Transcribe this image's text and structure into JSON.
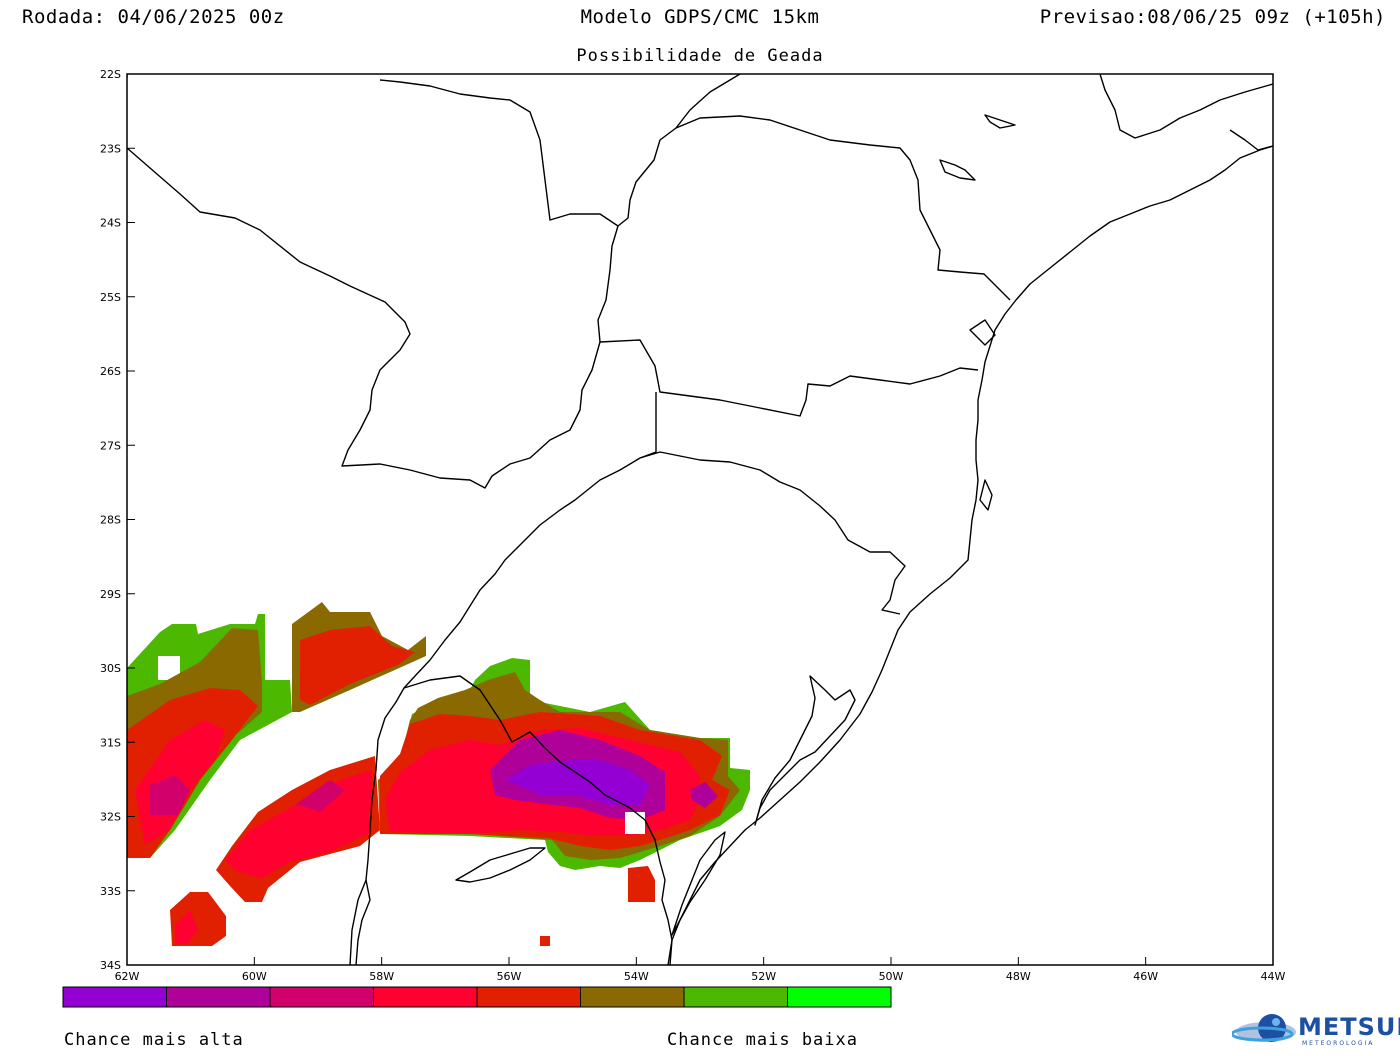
{
  "header": {
    "run": "Rodada: 04/06/2025 00z",
    "model": "Modelo GDPS/CMC 15km",
    "valid": "Previsao:08/06/25 09z (+105h)"
  },
  "subtitle": "Possibilidade de Geada",
  "map": {
    "lon_range": [
      -62,
      -44
    ],
    "lat_range": [
      -34,
      -22
    ],
    "lon_ticks": [
      "62W",
      "60W",
      "58W",
      "56W",
      "54W",
      "52W",
      "50W",
      "48W",
      "46W",
      "44W"
    ],
    "lat_ticks": [
      "22S",
      "23S",
      "24S",
      "25S",
      "26S",
      "27S",
      "28S",
      "29S",
      "30S",
      "31S",
      "32S",
      "33S",
      "34S"
    ]
  },
  "legend": {
    "colors": [
      "#9400d3",
      "#b0009a",
      "#d2006a",
      "#ff0030",
      "#e02000",
      "#8a6a00",
      "#4db800",
      "#00ff00"
    ],
    "label_high": "Chance mais alta",
    "label_low": "Chance mais baixa"
  },
  "logo": {
    "name": "METSUL",
    "tagline": "METEOROLOGIA",
    "color": "#1d4fa3"
  }
}
